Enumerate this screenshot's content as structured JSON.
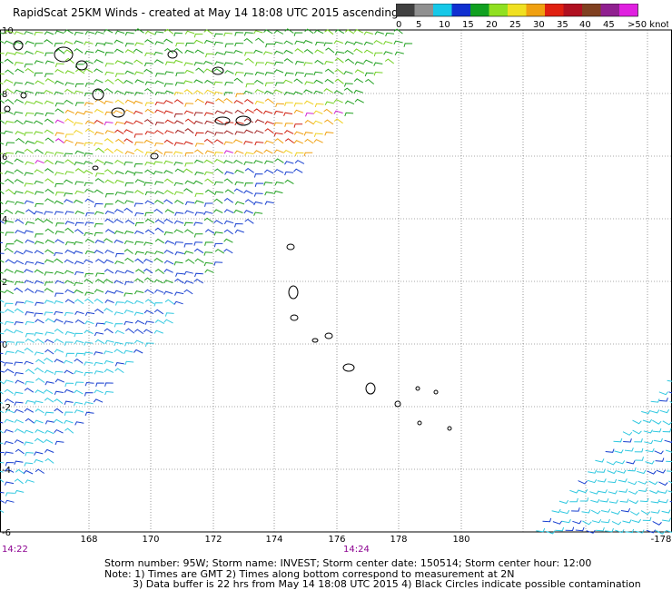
{
  "title": "RapidScat 25KM Winds - created at May 14 18:08 UTC 2015 ascending",
  "colorbar": {
    "labels": [
      "0",
      "5",
      "10",
      "15",
      "20",
      "25",
      "30",
      "35",
      "40",
      "45",
      ">50 knots"
    ],
    "colors": [
      "#404040",
      "#909090",
      "#16c8e8",
      "#1030d0",
      "#10a020",
      "#90e020",
      "#f0e020",
      "#f0a010",
      "#e02010",
      "#b01020",
      "#804020",
      "#902090",
      "#e020e0"
    ]
  },
  "map": {
    "lon_ticks": [
      "168",
      "170",
      "172",
      "174",
      "176",
      "178",
      "180",
      "-178"
    ],
    "lat_ticks": [
      "10",
      "8",
      "6",
      "4",
      "2",
      "0",
      "-2",
      "-4",
      "-6"
    ],
    "times": [
      "14:22",
      "14:24"
    ],
    "wind_colors": {
      "cyan": "#30c8e0",
      "blue": "#1840d0",
      "green": "#20a020",
      "lightgreen": "#70d020",
      "yellow": "#f0d020",
      "orange": "#f0a010",
      "red": "#d02010",
      "darkred": "#a02020",
      "magenta": "#d020d0"
    }
  },
  "footer": {
    "line1": "Storm number: 95W;  Storm name: INVEST;  Storm center date: 150514;  Storm center hour: 12:00",
    "line2": "Note: 1) Times are GMT  2) Times along bottom correspond to measurement at 2N",
    "line3": "3) Data buffer is 22 hrs from May 14 18:08 UTC 2015  4) Black Circles indicate possible contamination"
  }
}
